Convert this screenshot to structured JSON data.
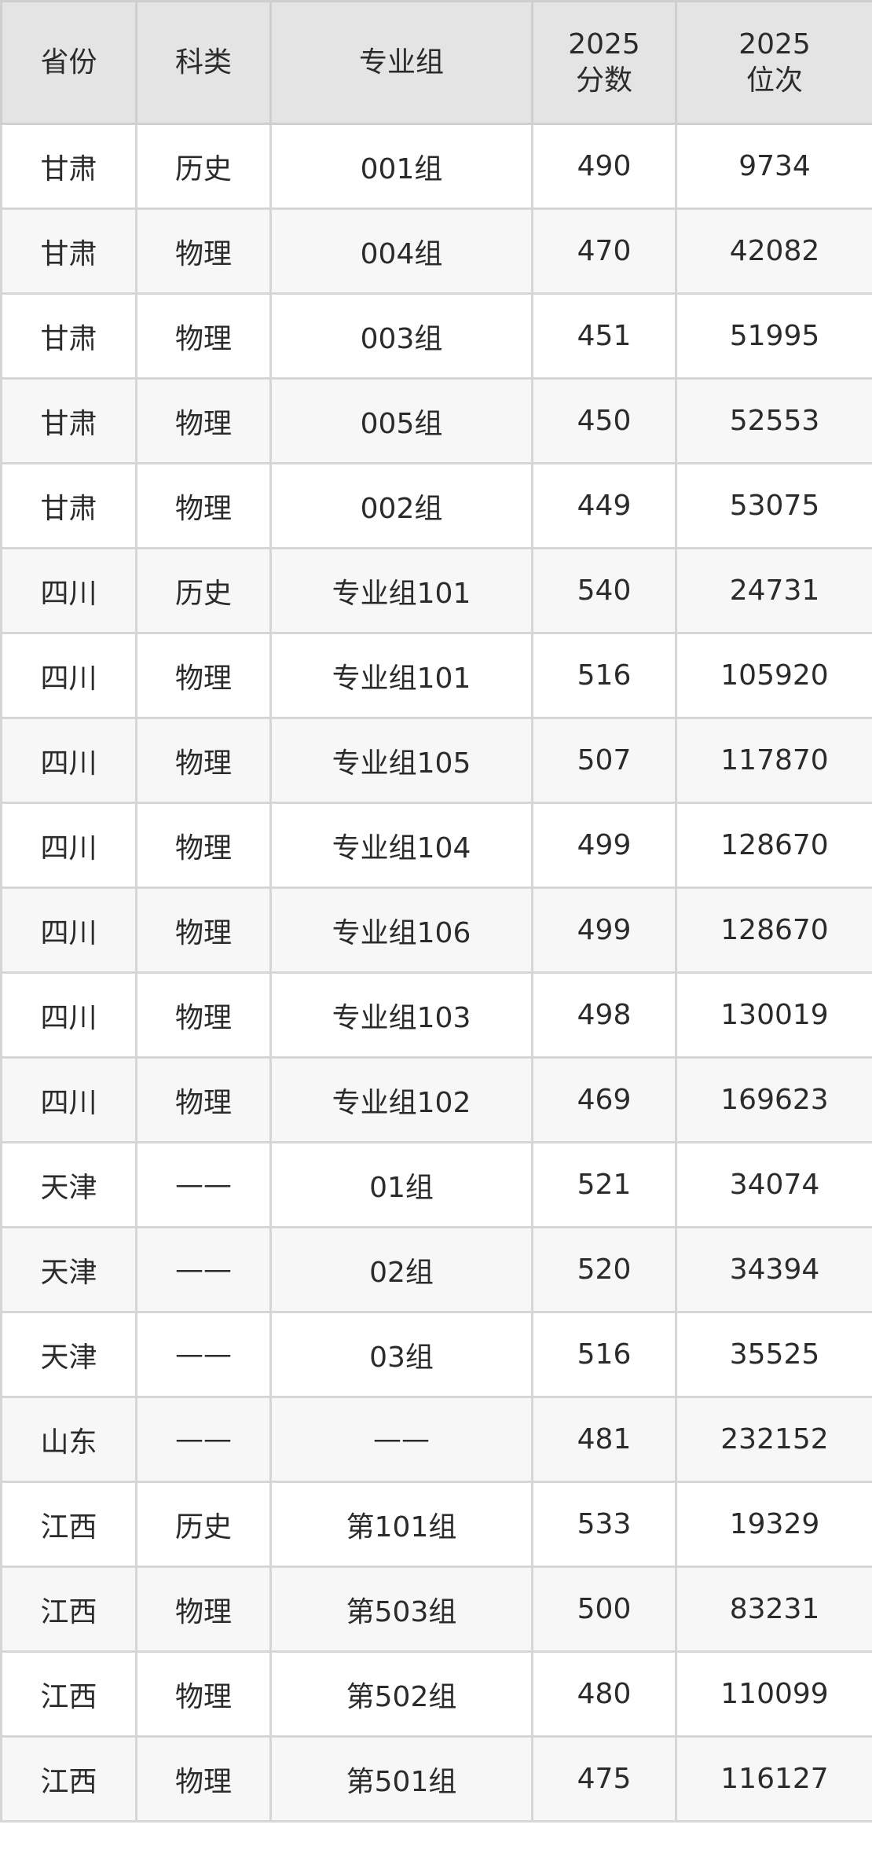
{
  "headers": [
    {
      "lines": [
        "省份"
      ]
    },
    {
      "lines": [
        "科类"
      ]
    },
    {
      "lines": [
        "专业组"
      ]
    },
    {
      "lines": [
        "2025",
        "分数"
      ]
    },
    {
      "lines": [
        "2025",
        "位次"
      ]
    }
  ],
  "rows": [
    [
      "甘肃",
      "历史",
      "001组",
      "490",
      "9734"
    ],
    [
      "甘肃",
      "物理",
      "004组",
      "470",
      "42082"
    ],
    [
      "甘肃",
      "物理",
      "003组",
      "451",
      "51995"
    ],
    [
      "甘肃",
      "物理",
      "005组",
      "450",
      "52553"
    ],
    [
      "甘肃",
      "物理",
      "002组",
      "449",
      "53075"
    ],
    [
      "四川",
      "历史",
      "专业组101",
      "540",
      "24731"
    ],
    [
      "四川",
      "物理",
      "专业组101",
      "516",
      "105920"
    ],
    [
      "四川",
      "物理",
      "专业组105",
      "507",
      "117870"
    ],
    [
      "四川",
      "物理",
      "专业组104",
      "499",
      "128670"
    ],
    [
      "四川",
      "物理",
      "专业组106",
      "499",
      "128670"
    ],
    [
      "四川",
      "物理",
      "专业组103",
      "498",
      "130019"
    ],
    [
      "四川",
      "物理",
      "专业组102",
      "469",
      "169623"
    ],
    [
      "天津",
      "——",
      "01组",
      "521",
      "34074"
    ],
    [
      "天津",
      "——",
      "02组",
      "520",
      "34394"
    ],
    [
      "天津",
      "——",
      "03组",
      "516",
      "35525"
    ],
    [
      "山东",
      "——",
      "——",
      "481",
      "232152"
    ],
    [
      "江西",
      "历史",
      "第101组",
      "533",
      "19329"
    ],
    [
      "江西",
      "物理",
      "第503组",
      "500",
      "83231"
    ],
    [
      "江西",
      "物理",
      "第502组",
      "480",
      "110099"
    ],
    [
      "江西",
      "物理",
      "第501组",
      "475",
      "116127"
    ]
  ]
}
